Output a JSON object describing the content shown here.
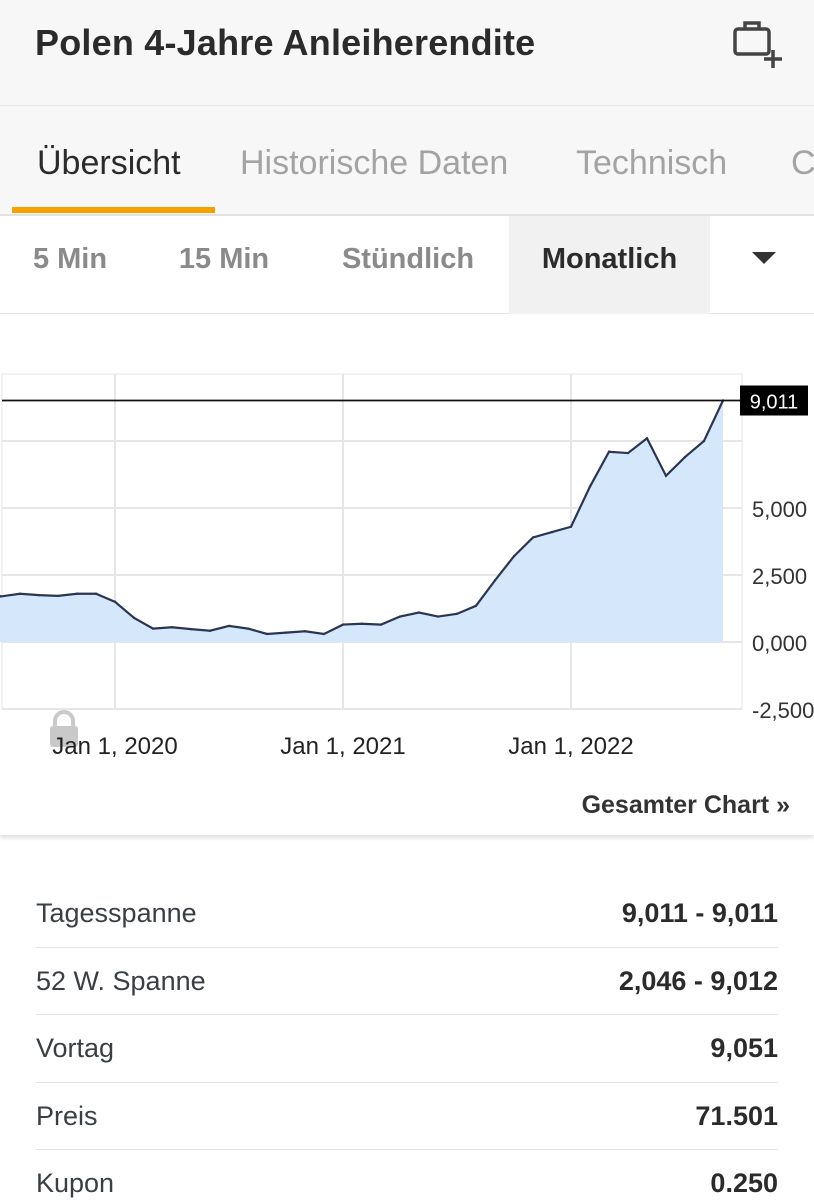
{
  "header": {
    "title": "Polen 4-Jahre Anleiherendite",
    "add_icon": "briefcase-plus-icon"
  },
  "tabs": [
    {
      "label": "Übersicht",
      "active": true
    },
    {
      "label": "Historische Daten",
      "active": false
    },
    {
      "label": "Technisch",
      "active": false
    },
    {
      "label": "C",
      "active": false
    }
  ],
  "periods": [
    {
      "label": "5 Min",
      "active": false
    },
    {
      "label": "15 Min",
      "active": false
    },
    {
      "label": "Stündlich",
      "active": false
    },
    {
      "label": "Monatlich",
      "active": true
    }
  ],
  "colors": {
    "accent": "#f5a200",
    "line": "#2b3553",
    "area": "#d5e8fb",
    "grid": "#e6e6e6"
  },
  "chart_data": {
    "type": "area",
    "x": [
      "2019-06",
      "2019-07",
      "2019-08",
      "2019-09",
      "2019-10",
      "2019-11",
      "2019-12",
      "2020-01",
      "2020-02",
      "2020-03",
      "2020-04",
      "2020-05",
      "2020-06",
      "2020-07",
      "2020-08",
      "2020-09",
      "2020-10",
      "2020-11",
      "2020-12",
      "2021-01",
      "2021-02",
      "2021-03",
      "2021-04",
      "2021-05",
      "2021-06",
      "2021-07",
      "2021-08",
      "2021-09",
      "2021-10",
      "2021-11",
      "2021-12",
      "2022-01",
      "2022-02",
      "2022-03",
      "2022-04",
      "2022-05",
      "2022-06",
      "2022-07",
      "2022-08",
      "2022-09"
    ],
    "values": [
      1.9,
      1.7,
      1.8,
      1.75,
      1.72,
      1.8,
      1.8,
      1.5,
      0.9,
      0.5,
      0.55,
      0.48,
      0.42,
      0.6,
      0.5,
      0.3,
      0.35,
      0.4,
      0.3,
      0.65,
      0.68,
      0.65,
      0.95,
      1.1,
      0.95,
      1.05,
      1.35,
      2.3,
      3.2,
      3.9,
      4.1,
      4.3,
      5.8,
      7.1,
      7.05,
      7.6,
      6.2,
      6.9,
      7.5,
      9.011
    ],
    "yticks": [
      "-2,500",
      "0,000",
      "2,500",
      "5,000"
    ],
    "ytick_values": [
      -2.5,
      0,
      2.5,
      5.0
    ],
    "xticks": [
      "Jan 1, 2020",
      "Jan 1, 2021",
      "Jan 1, 2022"
    ],
    "xtick_positions": [
      "2020-01",
      "2021-01",
      "2022-01"
    ],
    "ylim": [
      -2.5,
      10.0
    ],
    "last_value_label": "9,011",
    "last_value": 9.011,
    "grid": true,
    "lock_icon": "lock-icon"
  },
  "full_chart_label": "Gesamter Chart »",
  "stats": [
    {
      "label": "Tagesspanne",
      "value": "9,011 - 9,011"
    },
    {
      "label": "52 W. Spanne",
      "value": "2,046 - 9,012"
    },
    {
      "label": "Vortag",
      "value": "9,051"
    },
    {
      "label": "Preis",
      "value": "71.501"
    },
    {
      "label": "Kupon",
      "value": "0.250"
    }
  ]
}
